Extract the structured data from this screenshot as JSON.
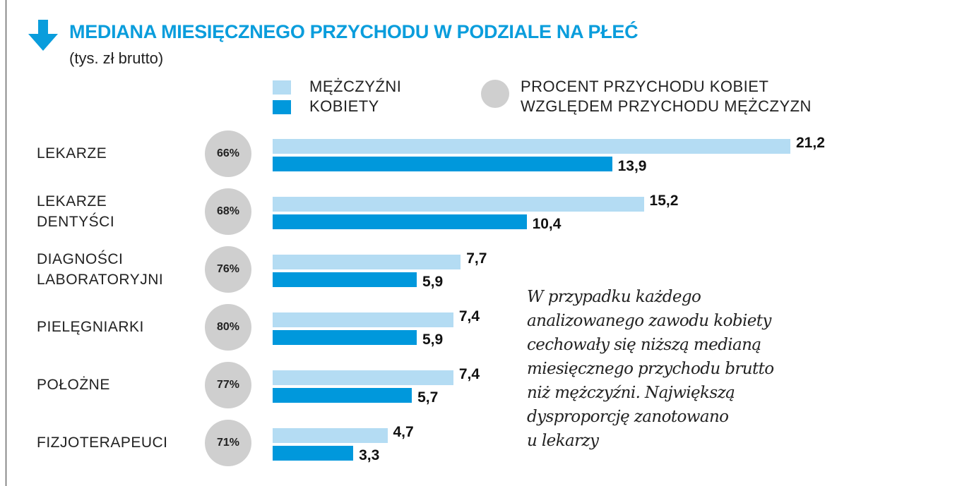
{
  "chart_data": {
    "type": "bar",
    "orientation": "horizontal",
    "title": "MEDIANA MIESIĘCZNEGO PRZYCHODU W PODZIALE NA PŁEĆ",
    "subtitle": "(tys. zł brutto)",
    "categories": [
      "LEKARZE",
      "LEKARZE\nDENTYŚCI",
      "DIAGNOŚCI\nLABORATORYJNI",
      "PIELĘGNIARKI",
      "POŁOŻNE",
      "FIZJOTERAPEUCI"
    ],
    "series": [
      {
        "name": "MĘŻCZYŹNI",
        "color": "#b4dcf3",
        "values": [
          21.2,
          15.2,
          7.7,
          7.4,
          7.4,
          4.7
        ],
        "labels": [
          "21,2",
          "15,2",
          "7,7",
          "7,4",
          "7,4",
          "4,7"
        ]
      },
      {
        "name": "KOBIETY",
        "color": "#0098dc",
        "values": [
          13.9,
          10.4,
          5.9,
          5.9,
          5.7,
          3.3
        ],
        "labels": [
          "13,9",
          "10,4",
          "5,9",
          "5,9",
          "5,7",
          "3,3"
        ]
      }
    ],
    "ratio": {
      "name": "PROCENT PRZYCHODU KOBIET WZGLĘDEM PRZYCHODU MĘŻCZYZN",
      "color": "#cfcfcf",
      "values": [
        "66%",
        "68%",
        "76%",
        "80%",
        "77%",
        "71%"
      ]
    },
    "xlim": [
      0,
      21.2
    ],
    "grid": false,
    "legend": "top"
  },
  "title_color": "#0a9ddc",
  "title_icon": "arrow-down-icon",
  "legend": {
    "men": "MĘŻCZYŹNI",
    "women": "KOBIETY",
    "ratio_line1": "PROCENT PRZYCHODU KOBIET",
    "ratio_line2": "WZGLĘDEM PRZYCHODU MĘŻCZYZN"
  },
  "note": "W przypadku każdego\nanalizowanego zawodu kobiety\ncechowały się niższą medianą\nmiesięcznego przychodu brutto\nniż mężczyźni. Największą\ndysproporcję zanotowano\nu lekarzy"
}
